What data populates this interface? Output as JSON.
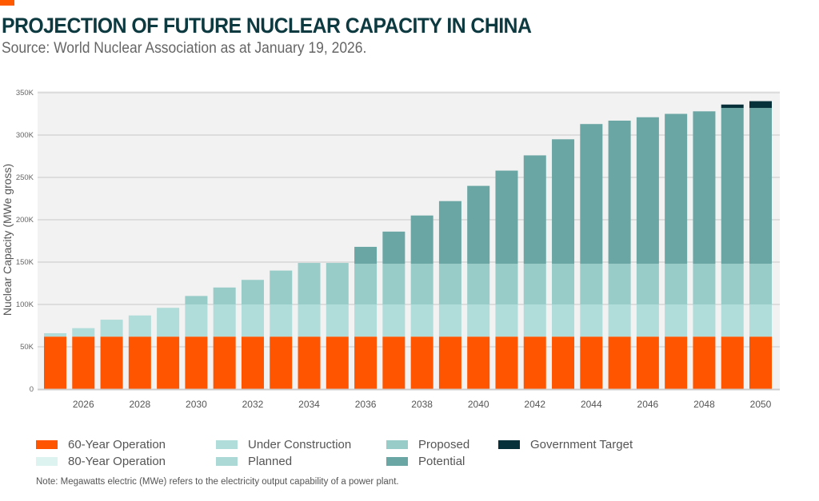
{
  "title": "PROJECTION OF FUTURE NUCLEAR CAPACITY IN CHINA",
  "subtitle": "Source: World Nuclear Association as at January 19, 2026.",
  "note": "Note: Megawatts electric (MWe) refers to the electricity output capability of a power plant.",
  "chart_data": {
    "type": "bar",
    "stacked": true,
    "ylabel": "Nuclear Capacity (MWe gross)",
    "ylim": [
      0,
      350000
    ],
    "yticks": [
      "0",
      "50K",
      "100K",
      "150K",
      "200K",
      "250K",
      "300K",
      "350K"
    ],
    "xticks": [
      "2026",
      "2028",
      "2030",
      "2032",
      "2034",
      "2036",
      "2038",
      "2040",
      "2042",
      "2044",
      "2046",
      "2048",
      "2050"
    ],
    "grid": true,
    "legend_position": "bottom",
    "categories": [
      2025,
      2026,
      2027,
      2028,
      2029,
      2030,
      2031,
      2032,
      2033,
      2034,
      2035,
      2036,
      2037,
      2038,
      2039,
      2040,
      2041,
      2042,
      2043,
      2044,
      2045,
      2046,
      2047,
      2048,
      2049,
      2050
    ],
    "series": [
      {
        "name": "60-Year Operation",
        "color": "#ff5500",
        "values": [
          62000,
          62000,
          62000,
          62000,
          62000,
          62000,
          62000,
          62000,
          62000,
          62000,
          62000,
          62000,
          62000,
          62000,
          62000,
          62000,
          62000,
          62000,
          62000,
          62000,
          62000,
          62000,
          62000,
          62000,
          62000,
          62000
        ]
      },
      {
        "name": "80-Year Operation",
        "color": "#ddf3ef",
        "values": [
          0,
          0,
          0,
          0,
          0,
          0,
          0,
          0,
          0,
          0,
          0,
          0,
          0,
          0,
          0,
          0,
          0,
          0,
          0,
          0,
          0,
          0,
          0,
          0,
          0,
          0
        ]
      },
      {
        "name": "Under Construction",
        "color": "#b0dcd9",
        "values": [
          4000,
          10000,
          20000,
          25000,
          34000,
          38000,
          38000,
          38000,
          38000,
          38000,
          38000,
          38000,
          38000,
          38000,
          38000,
          38000,
          38000,
          38000,
          38000,
          38000,
          38000,
          38000,
          38000,
          38000,
          38000,
          38000
        ]
      },
      {
        "name": "Planned",
        "color": "#acd9d6",
        "values": [
          0,
          0,
          0,
          0,
          0,
          0,
          0,
          0,
          0,
          0,
          0,
          0,
          0,
          0,
          0,
          0,
          0,
          0,
          0,
          0,
          0,
          0,
          0,
          0,
          0,
          0
        ]
      },
      {
        "name": "Proposed",
        "color": "#98ccc8",
        "values": [
          0,
          0,
          0,
          0,
          0,
          10000,
          20000,
          29000,
          40000,
          49000,
          49000,
          48000,
          48000,
          48000,
          48000,
          48000,
          48000,
          48000,
          48000,
          48000,
          48000,
          48000,
          48000,
          48000,
          48000,
          48000
        ]
      },
      {
        "name": "Potential",
        "color": "#6aa6a3",
        "values": [
          0,
          0,
          0,
          0,
          0,
          0,
          0,
          0,
          0,
          0,
          0,
          20000,
          38000,
          57000,
          74000,
          92000,
          110000,
          128000,
          147000,
          165000,
          169000,
          173000,
          177000,
          180000,
          184000,
          184000
        ]
      },
      {
        "name": "Government Target",
        "color": "#06303a",
        "values": [
          0,
          0,
          0,
          0,
          0,
          0,
          0,
          0,
          0,
          0,
          0,
          0,
          0,
          0,
          0,
          0,
          0,
          0,
          0,
          0,
          0,
          0,
          0,
          0,
          4000,
          8000
        ]
      }
    ]
  }
}
